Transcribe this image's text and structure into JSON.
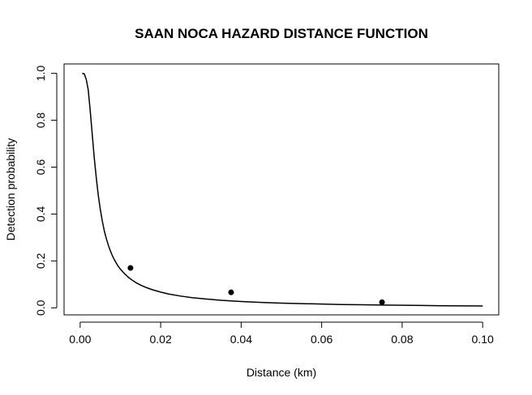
{
  "chart_data": {
    "type": "line",
    "title": "SAAN NOCA HAZARD DISTANCE FUNCTION",
    "xlabel": "Distance (km)",
    "ylabel": "Detection probability",
    "xlim": [
      -0.004,
      0.104
    ],
    "ylim": [
      -0.03,
      1.04
    ],
    "xticks": [
      0.0,
      0.02,
      0.04,
      0.06,
      0.08,
      0.1
    ],
    "xtick_labels": [
      "0.00",
      "0.02",
      "0.04",
      "0.06",
      "0.08",
      "0.10"
    ],
    "yticks": [
      0.0,
      0.2,
      0.4,
      0.6,
      0.8,
      1.0
    ],
    "ytick_labels": [
      "0.0",
      "0.2",
      "0.4",
      "0.6",
      "0.8",
      "1.0"
    ],
    "grid": false,
    "series": [
      {
        "kind": "line",
        "color": "#000000",
        "x": [
          0.0005,
          0.001,
          0.0015,
          0.002,
          0.0025,
          0.003,
          0.0035,
          0.004,
          0.0045,
          0.005,
          0.0055,
          0.006,
          0.0065,
          0.007,
          0.0075,
          0.008,
          0.0085,
          0.009,
          0.0095,
          0.01,
          0.011,
          0.012,
          0.013,
          0.014,
          0.015,
          0.0165,
          0.018,
          0.02,
          0.022,
          0.025,
          0.028,
          0.031,
          0.035,
          0.04,
          0.045,
          0.05,
          0.055,
          0.06,
          0.065,
          0.07,
          0.075,
          0.08,
          0.085,
          0.09,
          0.095,
          0.1
        ],
        "y": [
          1.0,
          0.998,
          0.975,
          0.93,
          0.84,
          0.74,
          0.64,
          0.555,
          0.48,
          0.42,
          0.37,
          0.328,
          0.295,
          0.267,
          0.243,
          0.222,
          0.205,
          0.19,
          0.176,
          0.165,
          0.146,
          0.13,
          0.117,
          0.106,
          0.097,
          0.086,
          0.077,
          0.067,
          0.059,
          0.05,
          0.043,
          0.038,
          0.032,
          0.027,
          0.023,
          0.02,
          0.018,
          0.016,
          0.014,
          0.013,
          0.012,
          0.011,
          0.01,
          0.009,
          0.0085,
          0.008
        ]
      },
      {
        "kind": "points",
        "color": "#000000",
        "x": [
          0.0125,
          0.0375,
          0.075
        ],
        "y": [
          0.17,
          0.066,
          0.024
        ]
      }
    ]
  }
}
